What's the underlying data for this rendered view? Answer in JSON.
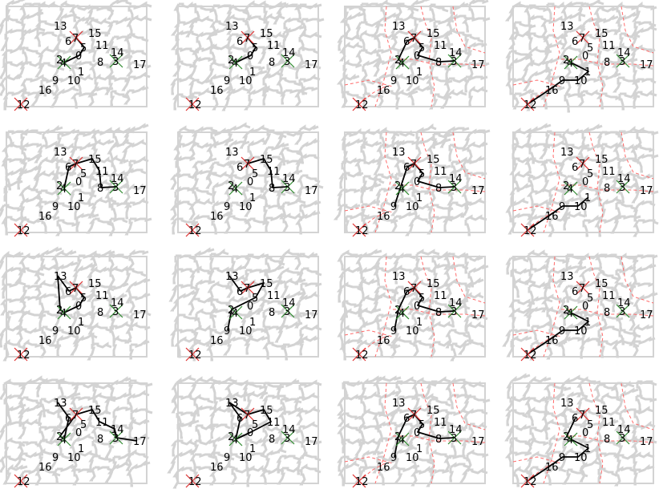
{
  "figure": {
    "colors": {
      "background": "#ffffff",
      "maze": "#d3d3d3",
      "path": "#000000",
      "red_dashed": "#ff6b6b",
      "marker_red": "#e03030",
      "marker_green": "#2e8b2e"
    },
    "node_ids": [
      "0",
      "1",
      "2",
      "3",
      "4",
      "5",
      "6",
      "7",
      "8",
      "9",
      "10",
      "11",
      "12",
      "13",
      "14",
      "15",
      "16",
      "17"
    ],
    "red_x_nodes": [
      "7",
      "12"
    ],
    "green_x_nodes": [
      "3",
      "4"
    ],
    "panels": [
      {
        "row": 0,
        "col": 0,
        "path": [
          "2",
          "4",
          "0",
          "5",
          "7"
        ],
        "dashed": false
      },
      {
        "row": 0,
        "col": 1,
        "path": [
          "2",
          "4",
          "0",
          "5",
          "7"
        ],
        "dashed": false
      },
      {
        "row": 0,
        "col": 2,
        "path": [
          "4",
          "2",
          "6",
          "7",
          "5",
          "0",
          "8",
          "3"
        ],
        "dashed": true
      },
      {
        "row": 0,
        "col": 3,
        "path": [
          "12",
          "16",
          "9",
          "10",
          "1",
          "4",
          "2"
        ],
        "dashed": true
      },
      {
        "row": 1,
        "col": 0,
        "path": [
          "4",
          "6",
          "7",
          "15",
          "11",
          "8",
          "3"
        ],
        "dashed": false
      },
      {
        "row": 1,
        "col": 1,
        "path": [
          "7",
          "15",
          "11",
          "8",
          "3"
        ],
        "dashed": false
      },
      {
        "row": 1,
        "col": 2,
        "path": [
          "9",
          "6",
          "7",
          "5",
          "0",
          "8",
          "3"
        ],
        "dashed": true
      },
      {
        "row": 1,
        "col": 3,
        "path": [
          "12",
          "16",
          "9",
          "10",
          "1"
        ],
        "dashed": true
      },
      {
        "row": 2,
        "col": 0,
        "path": [
          "13",
          "6",
          "7",
          "5",
          "0",
          "4",
          "2",
          "13"
        ],
        "dashed": false
      },
      {
        "row": 2,
        "col": 1,
        "path": [
          "13",
          "6",
          "7",
          "15",
          "5",
          "2",
          "9"
        ],
        "dashed": false
      },
      {
        "row": 2,
        "col": 2,
        "path": [
          "9",
          "2",
          "6",
          "7",
          "5",
          "0",
          "8",
          "3"
        ],
        "dashed": true
      },
      {
        "row": 2,
        "col": 3,
        "path": [
          "12",
          "16",
          "9",
          "10",
          "1",
          "4",
          "2"
        ],
        "dashed": true
      },
      {
        "row": 3,
        "col": 0,
        "path": [
          "13",
          "6",
          "4",
          "2",
          "7",
          "15",
          "11",
          "14",
          "3",
          "17"
        ],
        "dashed": false
      },
      {
        "row": 3,
        "col": 1,
        "path": [
          "13",
          "6",
          "4",
          "0",
          "11",
          "15",
          "7",
          "13"
        ],
        "dashed": false
      },
      {
        "row": 3,
        "col": 2,
        "path": [
          "9",
          "2",
          "6",
          "7",
          "5",
          "0",
          "8",
          "3"
        ],
        "dashed": true
      },
      {
        "row": 3,
        "col": 3,
        "path": [
          "12",
          "16",
          "9",
          "10",
          "1",
          "4",
          "2",
          "6"
        ],
        "dashed": true
      }
    ]
  }
}
